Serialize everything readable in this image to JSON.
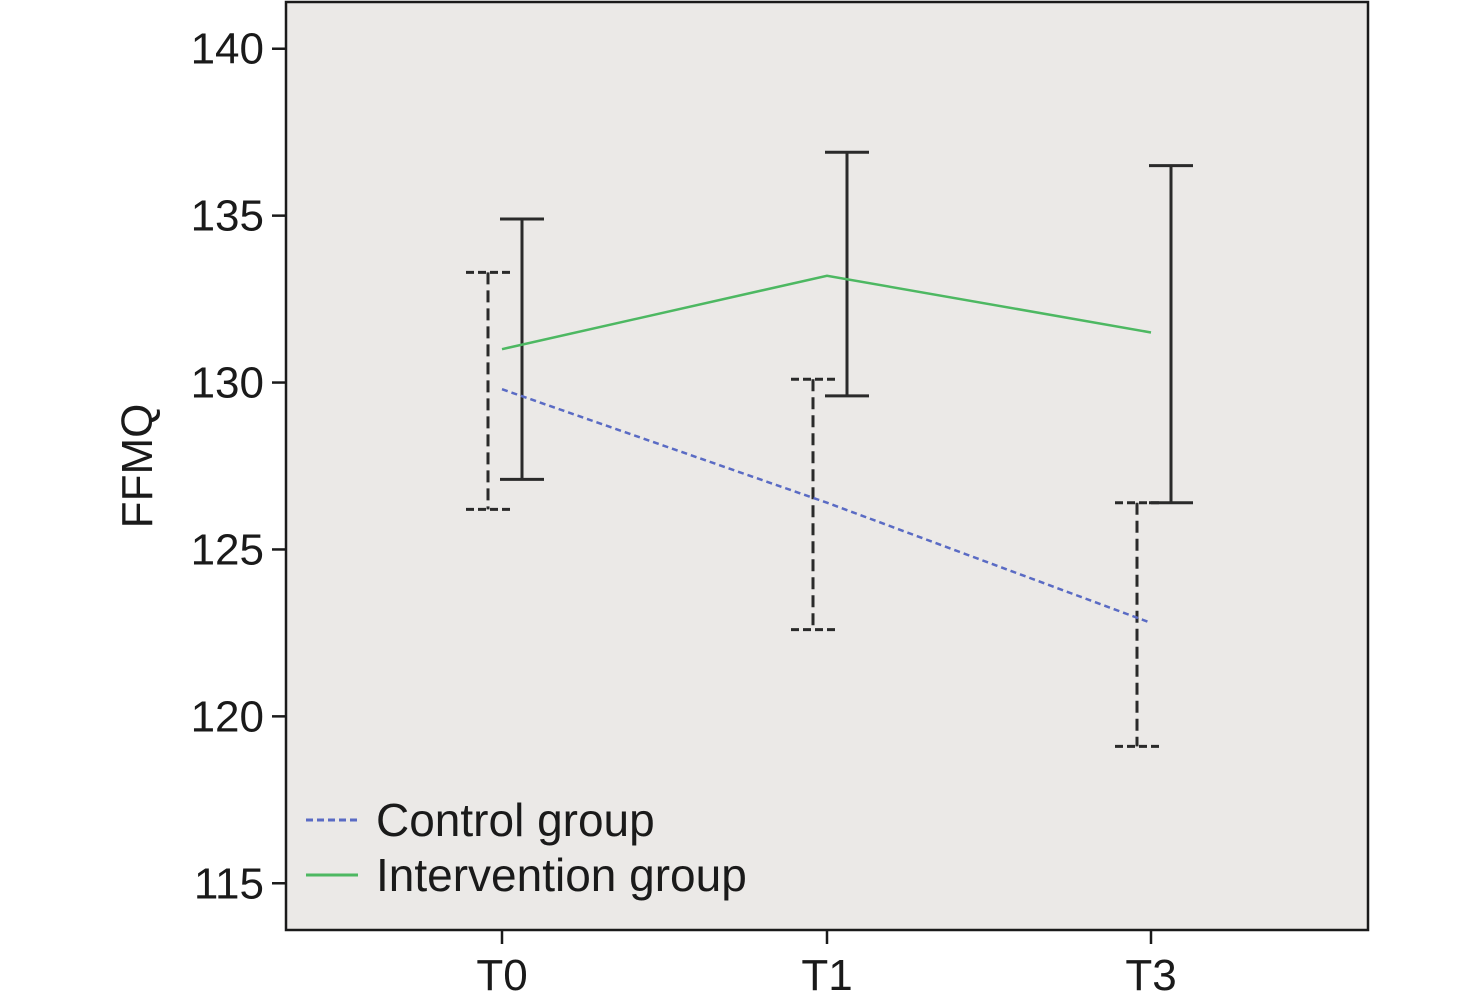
{
  "chart_data": {
    "type": "line",
    "title": "",
    "xlabel": "",
    "ylabel": "FFMQ",
    "categories": [
      "T0",
      "T1",
      "T3"
    ],
    "ylim": [
      113.6,
      141.4
    ],
    "yticks": [
      115,
      120,
      125,
      130,
      135,
      140
    ],
    "ytick_labels": [
      "115",
      "120",
      "125",
      "130",
      "135",
      "140"
    ],
    "grid": false,
    "legend_position": "bottom-left",
    "background_color": "#ebe9e7",
    "series": [
      {
        "name": "Control group",
        "style": "dashed",
        "color": "#5a6bc4",
        "errorbar_style": "dashed",
        "values": [
          129.8,
          126.4,
          122.8
        ],
        "err_low": [
          126.2,
          122.6,
          119.1
        ],
        "err_high": [
          133.3,
          130.1,
          126.4
        ]
      },
      {
        "name": "Intervention group",
        "style": "solid",
        "color": "#4db862",
        "errorbar_style": "solid",
        "values": [
          131.0,
          133.2,
          131.5
        ],
        "err_low": [
          127.1,
          129.6,
          126.4
        ],
        "err_high": [
          134.9,
          136.9,
          136.5
        ]
      }
    ]
  }
}
